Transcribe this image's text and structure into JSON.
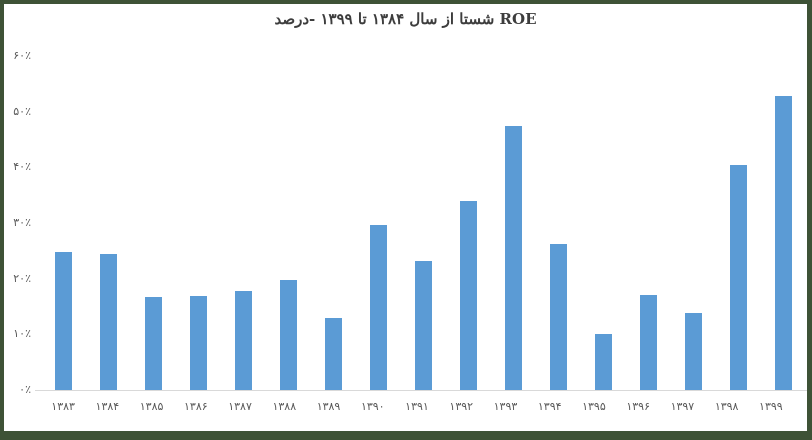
{
  "title": "ROE شستا از سال ۱۳۸۴ تا ۱۳۹۹  -درصد",
  "colors": {
    "bar": "#5B9BD5",
    "frame_border": "#3E5236",
    "title_text": "#3D3D3D",
    "axis_text": "#595959",
    "axis_line": "#D9D9D9",
    "background": "#FFFFFF"
  },
  "chart_data": {
    "type": "bar",
    "title": "ROE شستا از سال ۱۳۸۴ تا ۱۳۹۹  -درصد",
    "title_translation": "Shasta ROE from year 1384 to 1399 - percent",
    "categories": [
      "۱۳۸۳",
      "۱۳۸۴",
      "۱۳۸۵",
      "۱۳۸۶",
      "۱۳۸۷",
      "۱۳۸۸",
      "۱۳۸۹",
      "۱۳۹۰",
      "۱۳۹۱",
      "۱۳۹۲",
      "۱۳۹۳",
      "۱۳۹۴",
      "۱۳۹۵",
      "۱۳۹۶",
      "۱۳۹۷",
      "۱۳۹۸",
      "۱۳۹۹"
    ],
    "categories_western": [
      1383,
      1384,
      1385,
      1386,
      1387,
      1388,
      1389,
      1390,
      1391,
      1392,
      1393,
      1394,
      1395,
      1396,
      1397,
      1398,
      1399
    ],
    "values": [
      24.8,
      24.5,
      16.7,
      16.8,
      17.7,
      19.8,
      12.9,
      29.7,
      23.2,
      33.9,
      47.4,
      26.2,
      10.1,
      17.1,
      13.8,
      40.5,
      52.8
    ],
    "xlabel": "",
    "ylabel": "",
    "ylim": [
      0,
      60
    ],
    "yticks": [
      {
        "label": "۰٪",
        "value": 0
      },
      {
        "label": "۱۰٪",
        "value": 10
      },
      {
        "label": "۲۰٪",
        "value": 20
      },
      {
        "label": "۳۰٪",
        "value": 30
      },
      {
        "label": "۴۰٪",
        "value": 40
      },
      {
        "label": "۵۰٪",
        "value": 50
      },
      {
        "label": "۶۰٪",
        "value": 60
      }
    ],
    "grid": false,
    "legend": null,
    "bar_color": "#5B9BD5"
  }
}
